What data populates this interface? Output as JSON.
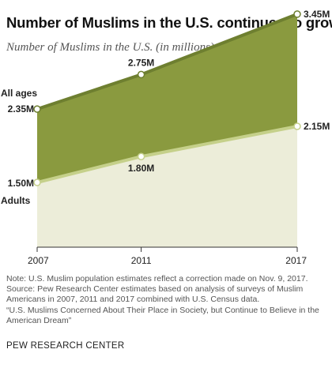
{
  "header": {
    "title": "Number of Muslims in the U.S. continues to grow",
    "subtitle": "Number of Muslims in the U.S. (in millions)"
  },
  "colors": {
    "all_ages_fill": "#8a9a3f",
    "all_ages_line": "#6e7f30",
    "adults_fill": "#ecedd9",
    "adults_line": "#c5d08a",
    "point_fill": "#ffffff"
  },
  "chart_data": {
    "type": "area",
    "x": [
      2007,
      2011,
      2017
    ],
    "xticks": [
      "2007",
      "2011",
      "2017"
    ],
    "series": [
      {
        "name": "All ages",
        "values": [
          2.35,
          2.75,
          3.45
        ],
        "labels": [
          "2.35M",
          "2.75M",
          "3.45M"
        ]
      },
      {
        "name": "Adults",
        "values": [
          1.5,
          1.8,
          2.15
        ],
        "labels": [
          "1.50M",
          "1.80M",
          "2.15M"
        ]
      }
    ],
    "xlim": [
      2007,
      2017
    ],
    "grid": false
  },
  "notes": {
    "note": "Note: U.S. Muslim population estimates reflect a correction made on Nov. 9, 2017.",
    "source": "Source: Pew Research Center estimates based on analysis of surveys of Muslim Americans in 2007, 2011 and 2017 combined with U.S. Census data.",
    "report": "“U.S. Muslims Concerned About Their Place in Society, but Continue to Believe in the American Dream”"
  },
  "footer": {
    "org": "PEW RESEARCH CENTER"
  }
}
